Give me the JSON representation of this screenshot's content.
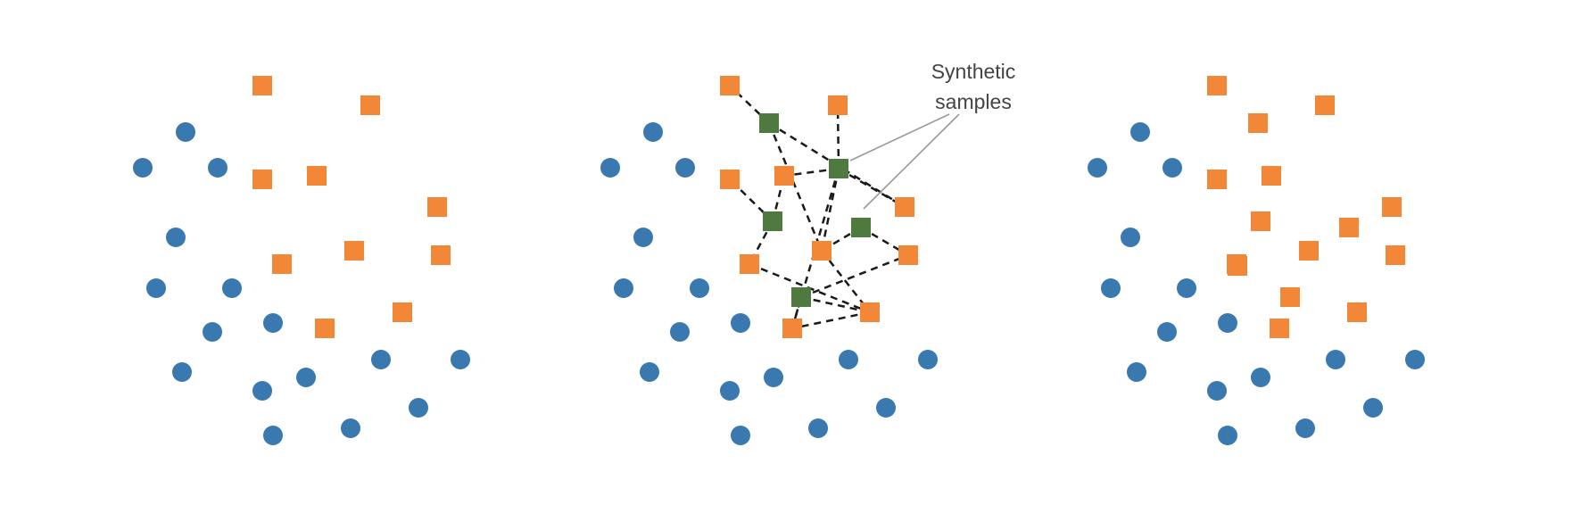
{
  "annotation": {
    "line1": "Synthetic",
    "line2": "samples"
  },
  "colors": {
    "majority": "#3a78b0",
    "minority": "#f28837",
    "synthetic": "#4e7a3f",
    "edge": "#1a1a1a",
    "pointer": "#999999",
    "text": "#444444"
  },
  "legend_semantics": {
    "majority_marker": "circle",
    "minority_marker": "square",
    "synthetic_marker": "square"
  }
}
